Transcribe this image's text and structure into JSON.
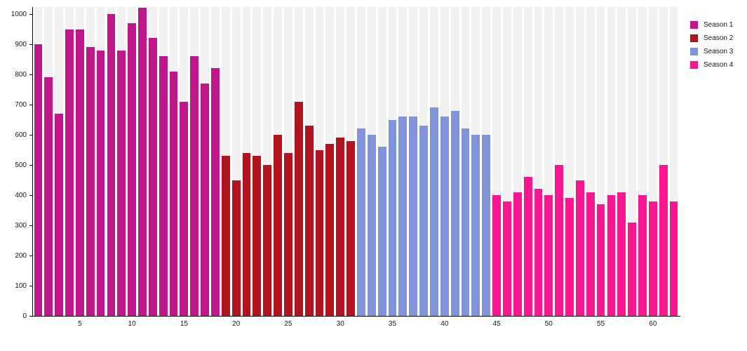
{
  "chart_data": {
    "type": "bar",
    "title": "",
    "xlabel": "",
    "ylabel": "",
    "x_range": [
      1,
      62
    ],
    "x_ticks": [
      5,
      10,
      15,
      20,
      25,
      30,
      35,
      40,
      45,
      50,
      55,
      60
    ],
    "y_ticks": [
      0,
      100,
      200,
      300,
      400,
      500,
      600,
      700,
      800,
      900,
      1000
    ],
    "ylim": [
      0,
      1020
    ],
    "grid": "off",
    "background_columns": true,
    "background_column_color": "#f1f1f1",
    "legend_position": "top-right",
    "series": [
      {
        "name": "Season 1",
        "color": "#C2158B",
        "start_x": 1,
        "values": [
          900,
          790,
          670,
          950,
          950,
          890,
          880,
          1000,
          880,
          970,
          1020,
          920,
          860,
          810,
          710,
          860,
          770,
          820
        ]
      },
      {
        "name": "Season 2",
        "color": "#B5121F",
        "start_x": 19,
        "values": [
          530,
          450,
          540,
          530,
          500,
          600,
          540,
          710,
          630,
          550,
          570,
          590,
          580
        ]
      },
      {
        "name": "Season 3",
        "color": "#8093DB",
        "start_x": 32,
        "values": [
          620,
          600,
          560,
          650,
          660,
          660,
          630,
          690,
          660,
          680,
          620,
          600,
          600
        ]
      },
      {
        "name": "Season 4",
        "color": "#FB1590",
        "start_x": 45,
        "values": [
          400,
          380,
          410,
          460,
          420,
          400,
          500,
          390,
          450,
          410,
          370,
          400,
          410,
          310,
          400,
          380,
          500,
          380
        ]
      }
    ]
  },
  "legend": {
    "items": [
      {
        "label": "Season 1",
        "color": "#C2158B"
      },
      {
        "label": "Season 2",
        "color": "#B5121F"
      },
      {
        "label": "Season 3",
        "color": "#8093DB"
      },
      {
        "label": "Season 4",
        "color": "#FB1590"
      }
    ]
  }
}
